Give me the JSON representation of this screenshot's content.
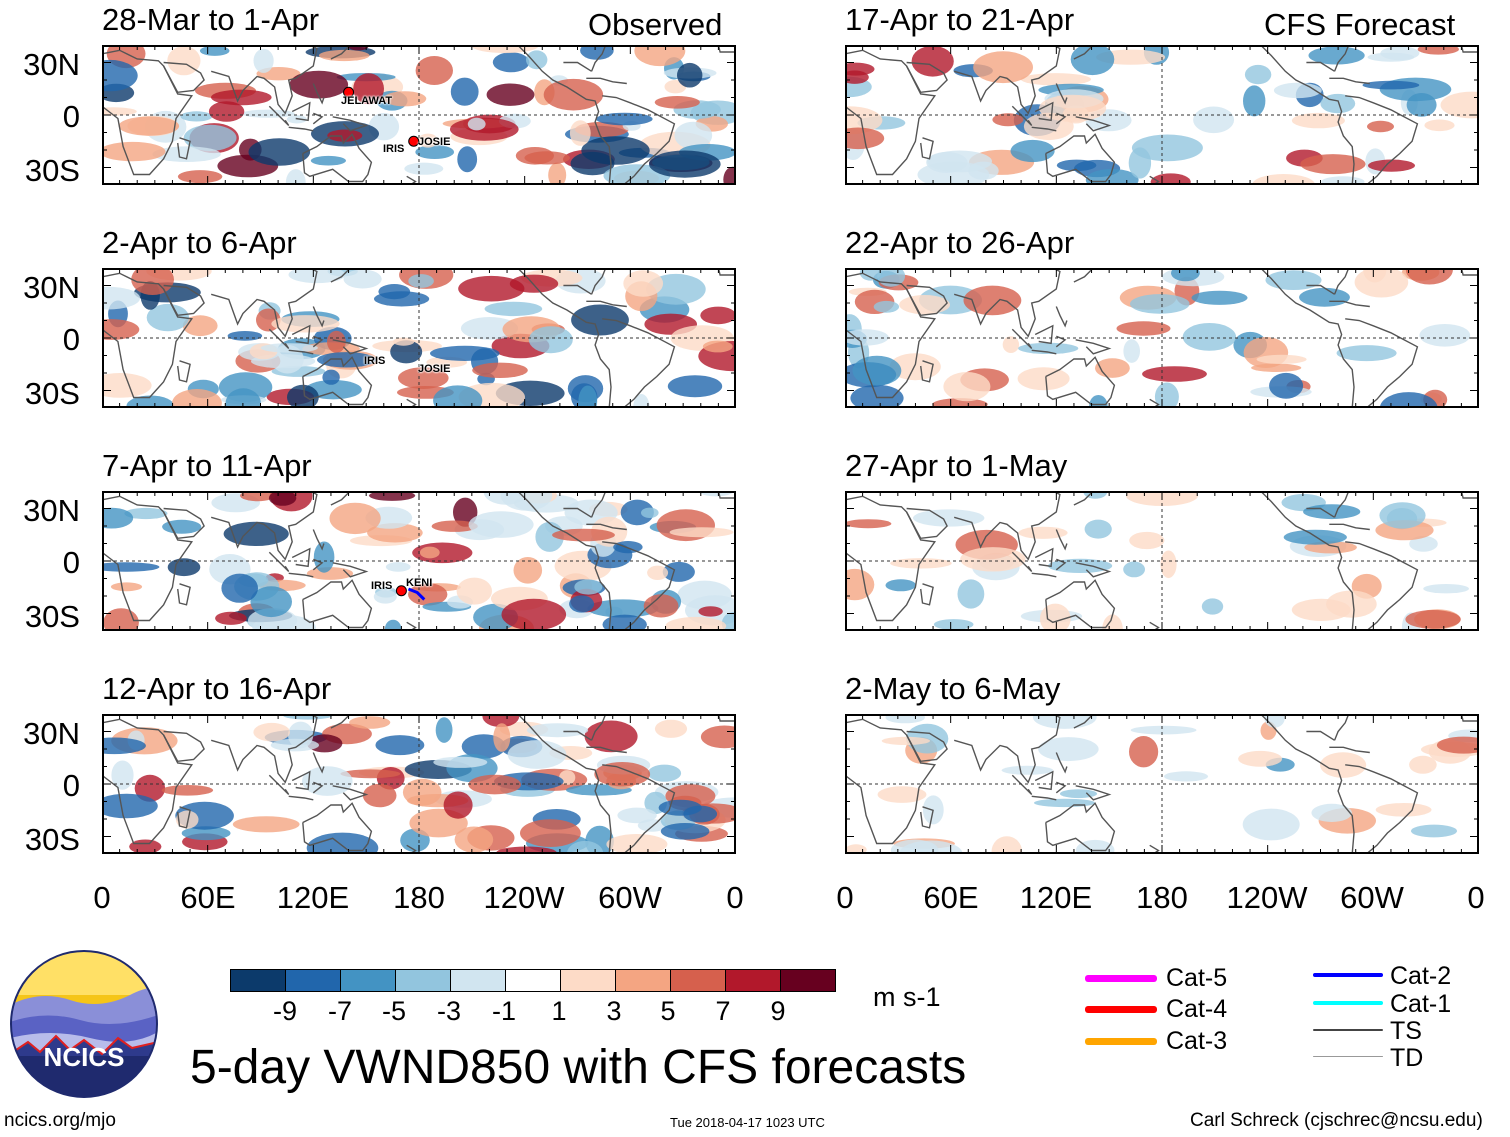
{
  "header": {
    "observed_label": "Observed",
    "forecast_label": "CFS Forecast"
  },
  "panels": [
    {
      "title": "28-Mar to 1-Apr",
      "storms": [
        "JELAWAT",
        "IRIS",
        "JOSIE"
      ]
    },
    {
      "title": "2-Apr to 6-Apr",
      "storms": [
        "IRIS",
        "JOSIE"
      ]
    },
    {
      "title": "7-Apr to 11-Apr",
      "storms": [
        "IRIS",
        "KENI"
      ]
    },
    {
      "title": "12-Apr to 16-Apr",
      "storms": []
    },
    {
      "title": "17-Apr to 21-Apr",
      "storms": []
    },
    {
      "title": "22-Apr to 26-Apr",
      "storms": []
    },
    {
      "title": "27-Apr to 1-May",
      "storms": []
    },
    {
      "title": "2-May to 6-May",
      "storms": []
    }
  ],
  "axes": {
    "lat_labels": [
      "30N",
      "0",
      "30S"
    ],
    "lon_labels": [
      "0",
      "60E",
      "120E",
      "180",
      "120W",
      "60W",
      "0"
    ]
  },
  "colorbar": {
    "ticks": [
      "-9",
      "-7",
      "-5",
      "-3",
      "-1",
      "1",
      "3",
      "5",
      "7",
      "9"
    ],
    "units": "m s-1",
    "colors": [
      "#0c3a6b",
      "#2166ac",
      "#4393c3",
      "#92c5de",
      "#d1e5f0",
      "#ffffff",
      "#fddbc7",
      "#f4a582",
      "#d6604d",
      "#b2182b",
      "#67001f"
    ]
  },
  "legend": [
    {
      "label": "Cat-5",
      "color": "#ff00ff"
    },
    {
      "label": "Cat-4",
      "color": "#ff0000"
    },
    {
      "label": "Cat-3",
      "color": "#ffa500"
    },
    {
      "label": "Cat-2",
      "color": "#0000ff"
    },
    {
      "label": "Cat-1",
      "color": "#00ffff"
    },
    {
      "label": "TS",
      "color": "#444444"
    },
    {
      "label": "TD",
      "color": "#999999"
    }
  ],
  "logo": {
    "text": "NCICS"
  },
  "main_title": "5-day VWND850 with CFS forecasts",
  "footer": {
    "url": "ncics.org/mjo",
    "timestamp": "Tue 2018-04-17 1023 UTC",
    "author": "Carl Schreck (cjschrec@ncsu.edu)"
  }
}
